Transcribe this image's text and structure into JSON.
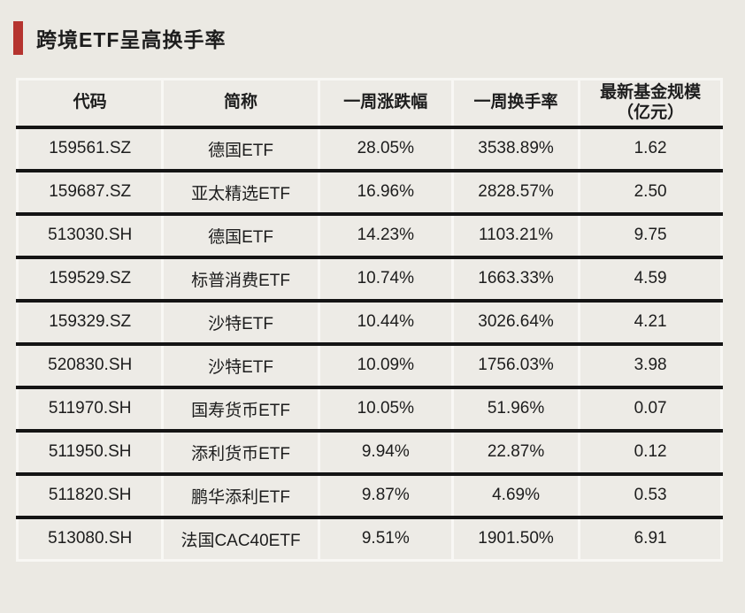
{
  "page": {
    "background_color": "#ebe9e3",
    "accent_color": "#b5342f",
    "text_color": "#1d1d1d"
  },
  "header": {
    "title": "跨境ETF呈高换手率"
  },
  "chart_data": {
    "type": "table",
    "title": "跨境ETF呈高换手率",
    "columns": [
      "代码",
      "简称",
      "一周涨跌幅",
      "一周换手率",
      "最新基金规模\n（亿元）"
    ],
    "rows": [
      {
        "code": "159561.SZ",
        "name": "德国ETF",
        "week_change": "28.05%",
        "week_turnover": "3538.89%",
        "fund_size": "1.62"
      },
      {
        "code": "159687.SZ",
        "name": "亚太精选ETF",
        "week_change": "16.96%",
        "week_turnover": "2828.57%",
        "fund_size": "2.50"
      },
      {
        "code": "513030.SH",
        "name": "德国ETF",
        "week_change": "14.23%",
        "week_turnover": "1103.21%",
        "fund_size": "9.75"
      },
      {
        "code": "159529.SZ",
        "name": "标普消费ETF",
        "week_change": "10.74%",
        "week_turnover": "1663.33%",
        "fund_size": "4.59"
      },
      {
        "code": "159329.SZ",
        "name": "沙特ETF",
        "week_change": "10.44%",
        "week_turnover": "3026.64%",
        "fund_size": "4.21"
      },
      {
        "code": "520830.SH",
        "name": "沙特ETF",
        "week_change": "10.09%",
        "week_turnover": "1756.03%",
        "fund_size": "3.98"
      },
      {
        "code": "511970.SH",
        "name": "国寿货币ETF",
        "week_change": "10.05%",
        "week_turnover": "51.96%",
        "fund_size": "0.07"
      },
      {
        "code": "511950.SH",
        "name": "添利货币ETF",
        "week_change": "9.94%",
        "week_turnover": "22.87%",
        "fund_size": "0.12"
      },
      {
        "code": "511820.SH",
        "name": "鹏华添利ETF",
        "week_change": "9.87%",
        "week_turnover": "4.69%",
        "fund_size": "0.53"
      },
      {
        "code": "513080.SH",
        "name": "法国CAC40ETF",
        "week_change": "9.51%",
        "week_turnover": "1901.50%",
        "fund_size": "6.91"
      }
    ]
  }
}
